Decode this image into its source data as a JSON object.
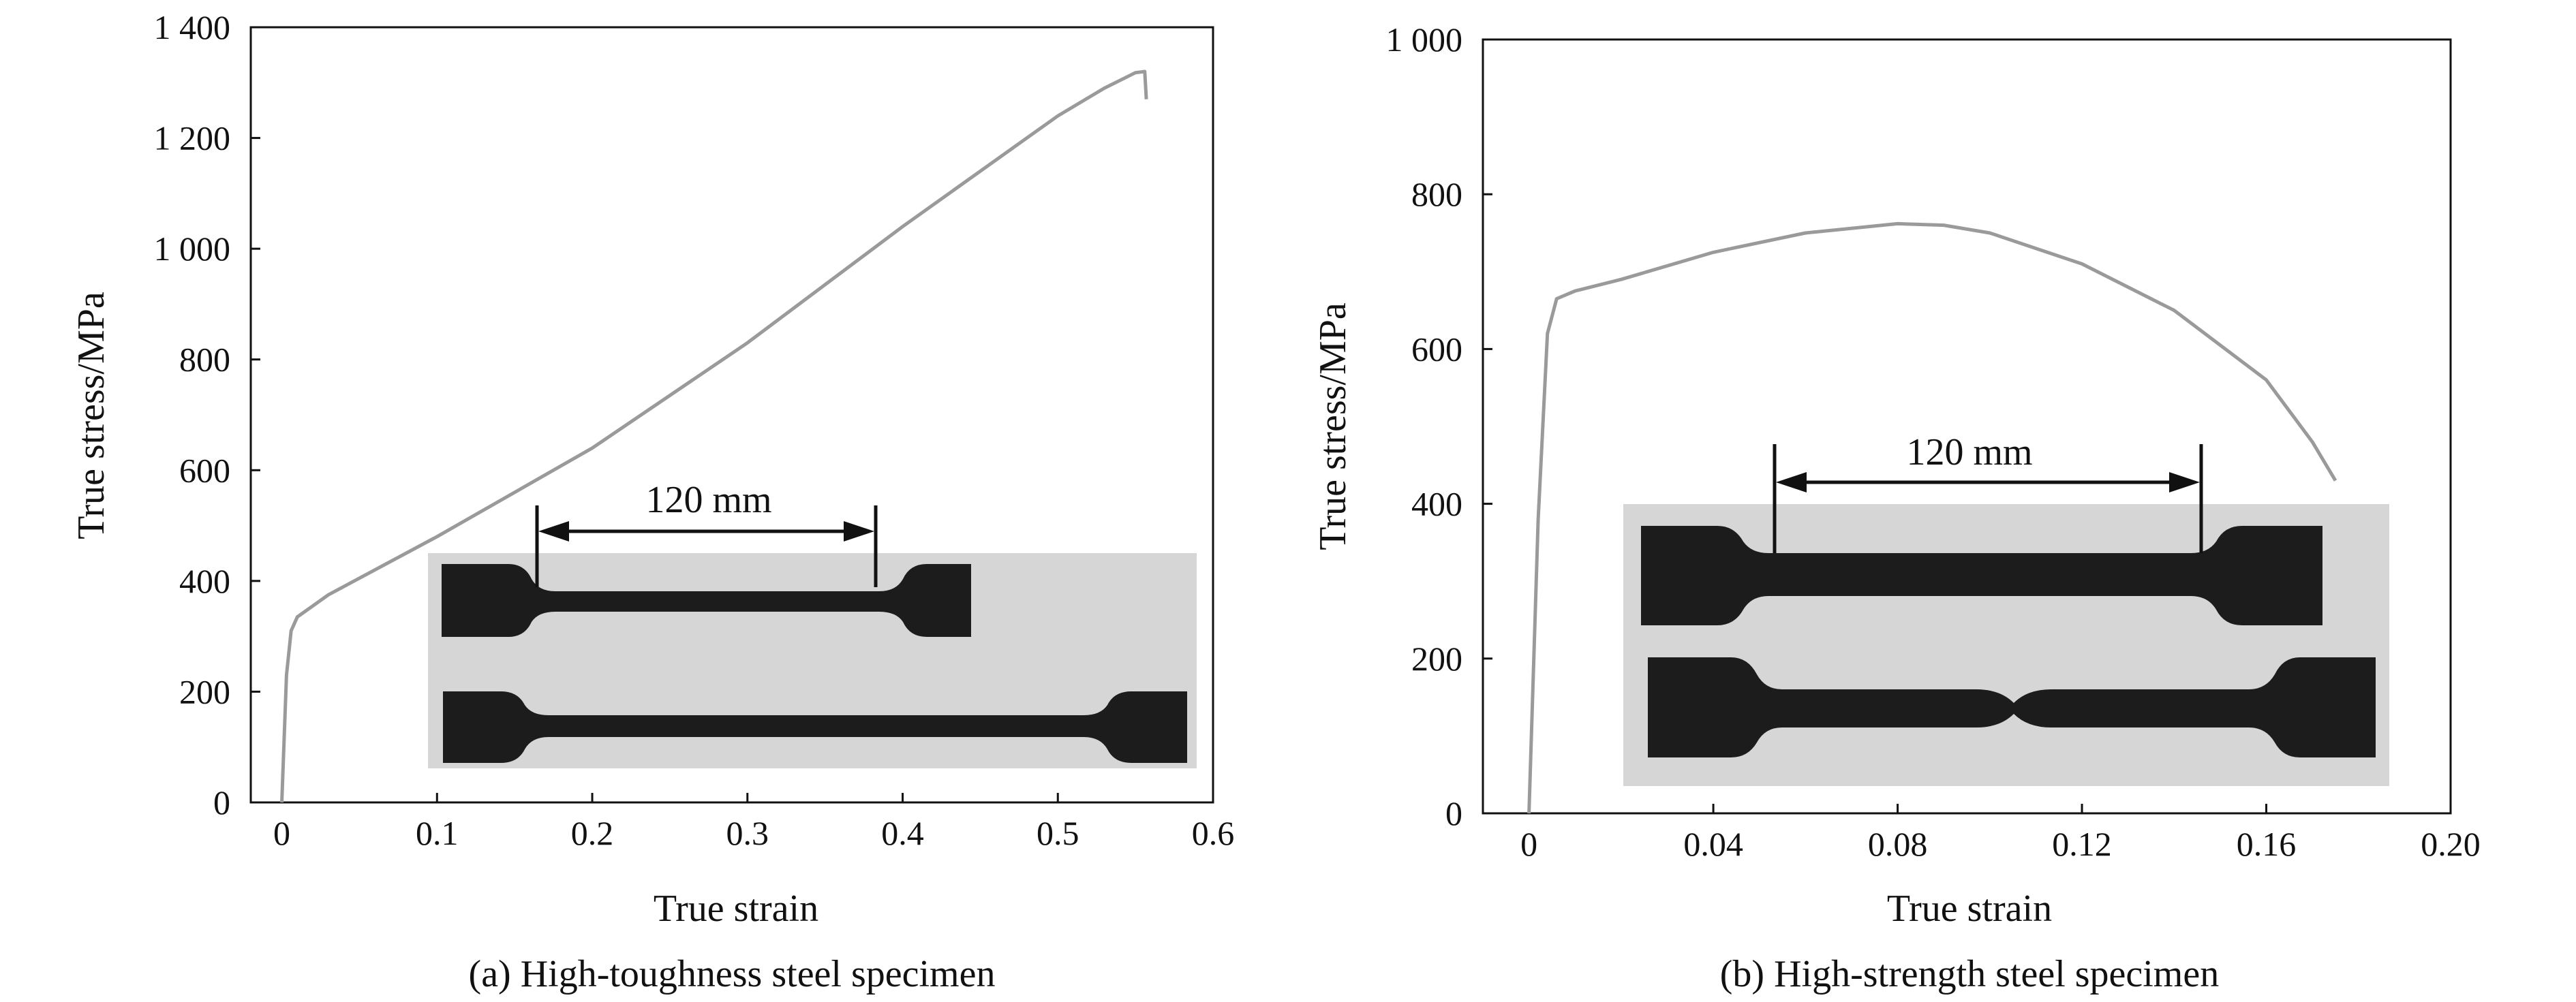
{
  "colors": {
    "curve": "#9a9a9a",
    "frame": "#111111",
    "photo_bg": "#d6d6d6",
    "specimen": "#1c1c1c"
  },
  "chart_data": [
    {
      "type": "line",
      "title": "",
      "caption": "(a) High-toughness steel specimen",
      "xlabel": "True strain",
      "ylabel": "True stress/MPa",
      "xlim": [
        -0.02,
        0.6
      ],
      "ylim": [
        0,
        1400
      ],
      "x_ticks": [
        0,
        0.1,
        0.2,
        0.3,
        0.4,
        0.5,
        0.6
      ],
      "x_tick_labels": [
        "0",
        "0.1",
        "0.2",
        "0.3",
        "0.4",
        "0.5",
        "0.6"
      ],
      "y_ticks": [
        0,
        200,
        400,
        600,
        800,
        1000,
        1200,
        1400
      ],
      "y_tick_labels": [
        "0",
        "200",
        "400",
        "600",
        "800",
        "1 000",
        "1 200",
        "1 400"
      ],
      "series": [
        {
          "name": "High-toughness steel",
          "x": [
            0,
            0.003,
            0.006,
            0.01,
            0.015,
            0.03,
            0.1,
            0.2,
            0.3,
            0.4,
            0.5,
            0.53,
            0.55,
            0.556,
            0.557
          ],
          "y": [
            0,
            230,
            310,
            335,
            345,
            375,
            480,
            640,
            830,
            1040,
            1240,
            1290,
            1318,
            1320,
            1270
          ]
        }
      ],
      "inset": {
        "gauge_label": "120 mm",
        "gauge_from": 0.175,
        "gauge_to": 0.39
      }
    },
    {
      "type": "line",
      "title": "",
      "caption": "(b) High-strength steel specimen",
      "xlabel": "True strain",
      "ylabel": "True stress/MPa",
      "xlim": [
        -0.01,
        0.2
      ],
      "ylim": [
        0,
        1000
      ],
      "x_ticks": [
        0,
        0.04,
        0.08,
        0.12,
        0.16,
        0.2
      ],
      "x_tick_labels": [
        "0",
        "0.04",
        "0.08",
        "0.12",
        "0.16",
        "0.20"
      ],
      "y_ticks": [
        0,
        200,
        400,
        600,
        800,
        1000
      ],
      "y_tick_labels": [
        "0",
        "200",
        "400",
        "600",
        "800",
        "1 000"
      ],
      "series": [
        {
          "name": "High-strength steel",
          "x": [
            0,
            0.002,
            0.004,
            0.006,
            0.01,
            0.02,
            0.04,
            0.06,
            0.08,
            0.09,
            0.1,
            0.12,
            0.14,
            0.16,
            0.17,
            0.175
          ],
          "y": [
            0,
            380,
            620,
            665,
            675,
            690,
            725,
            750,
            762,
            760,
            750,
            710,
            650,
            560,
            480,
            430
          ]
        }
      ],
      "inset": {
        "gauge_label": "120 mm",
        "gauge_from": 0.06,
        "gauge_to": 0.149
      }
    }
  ]
}
